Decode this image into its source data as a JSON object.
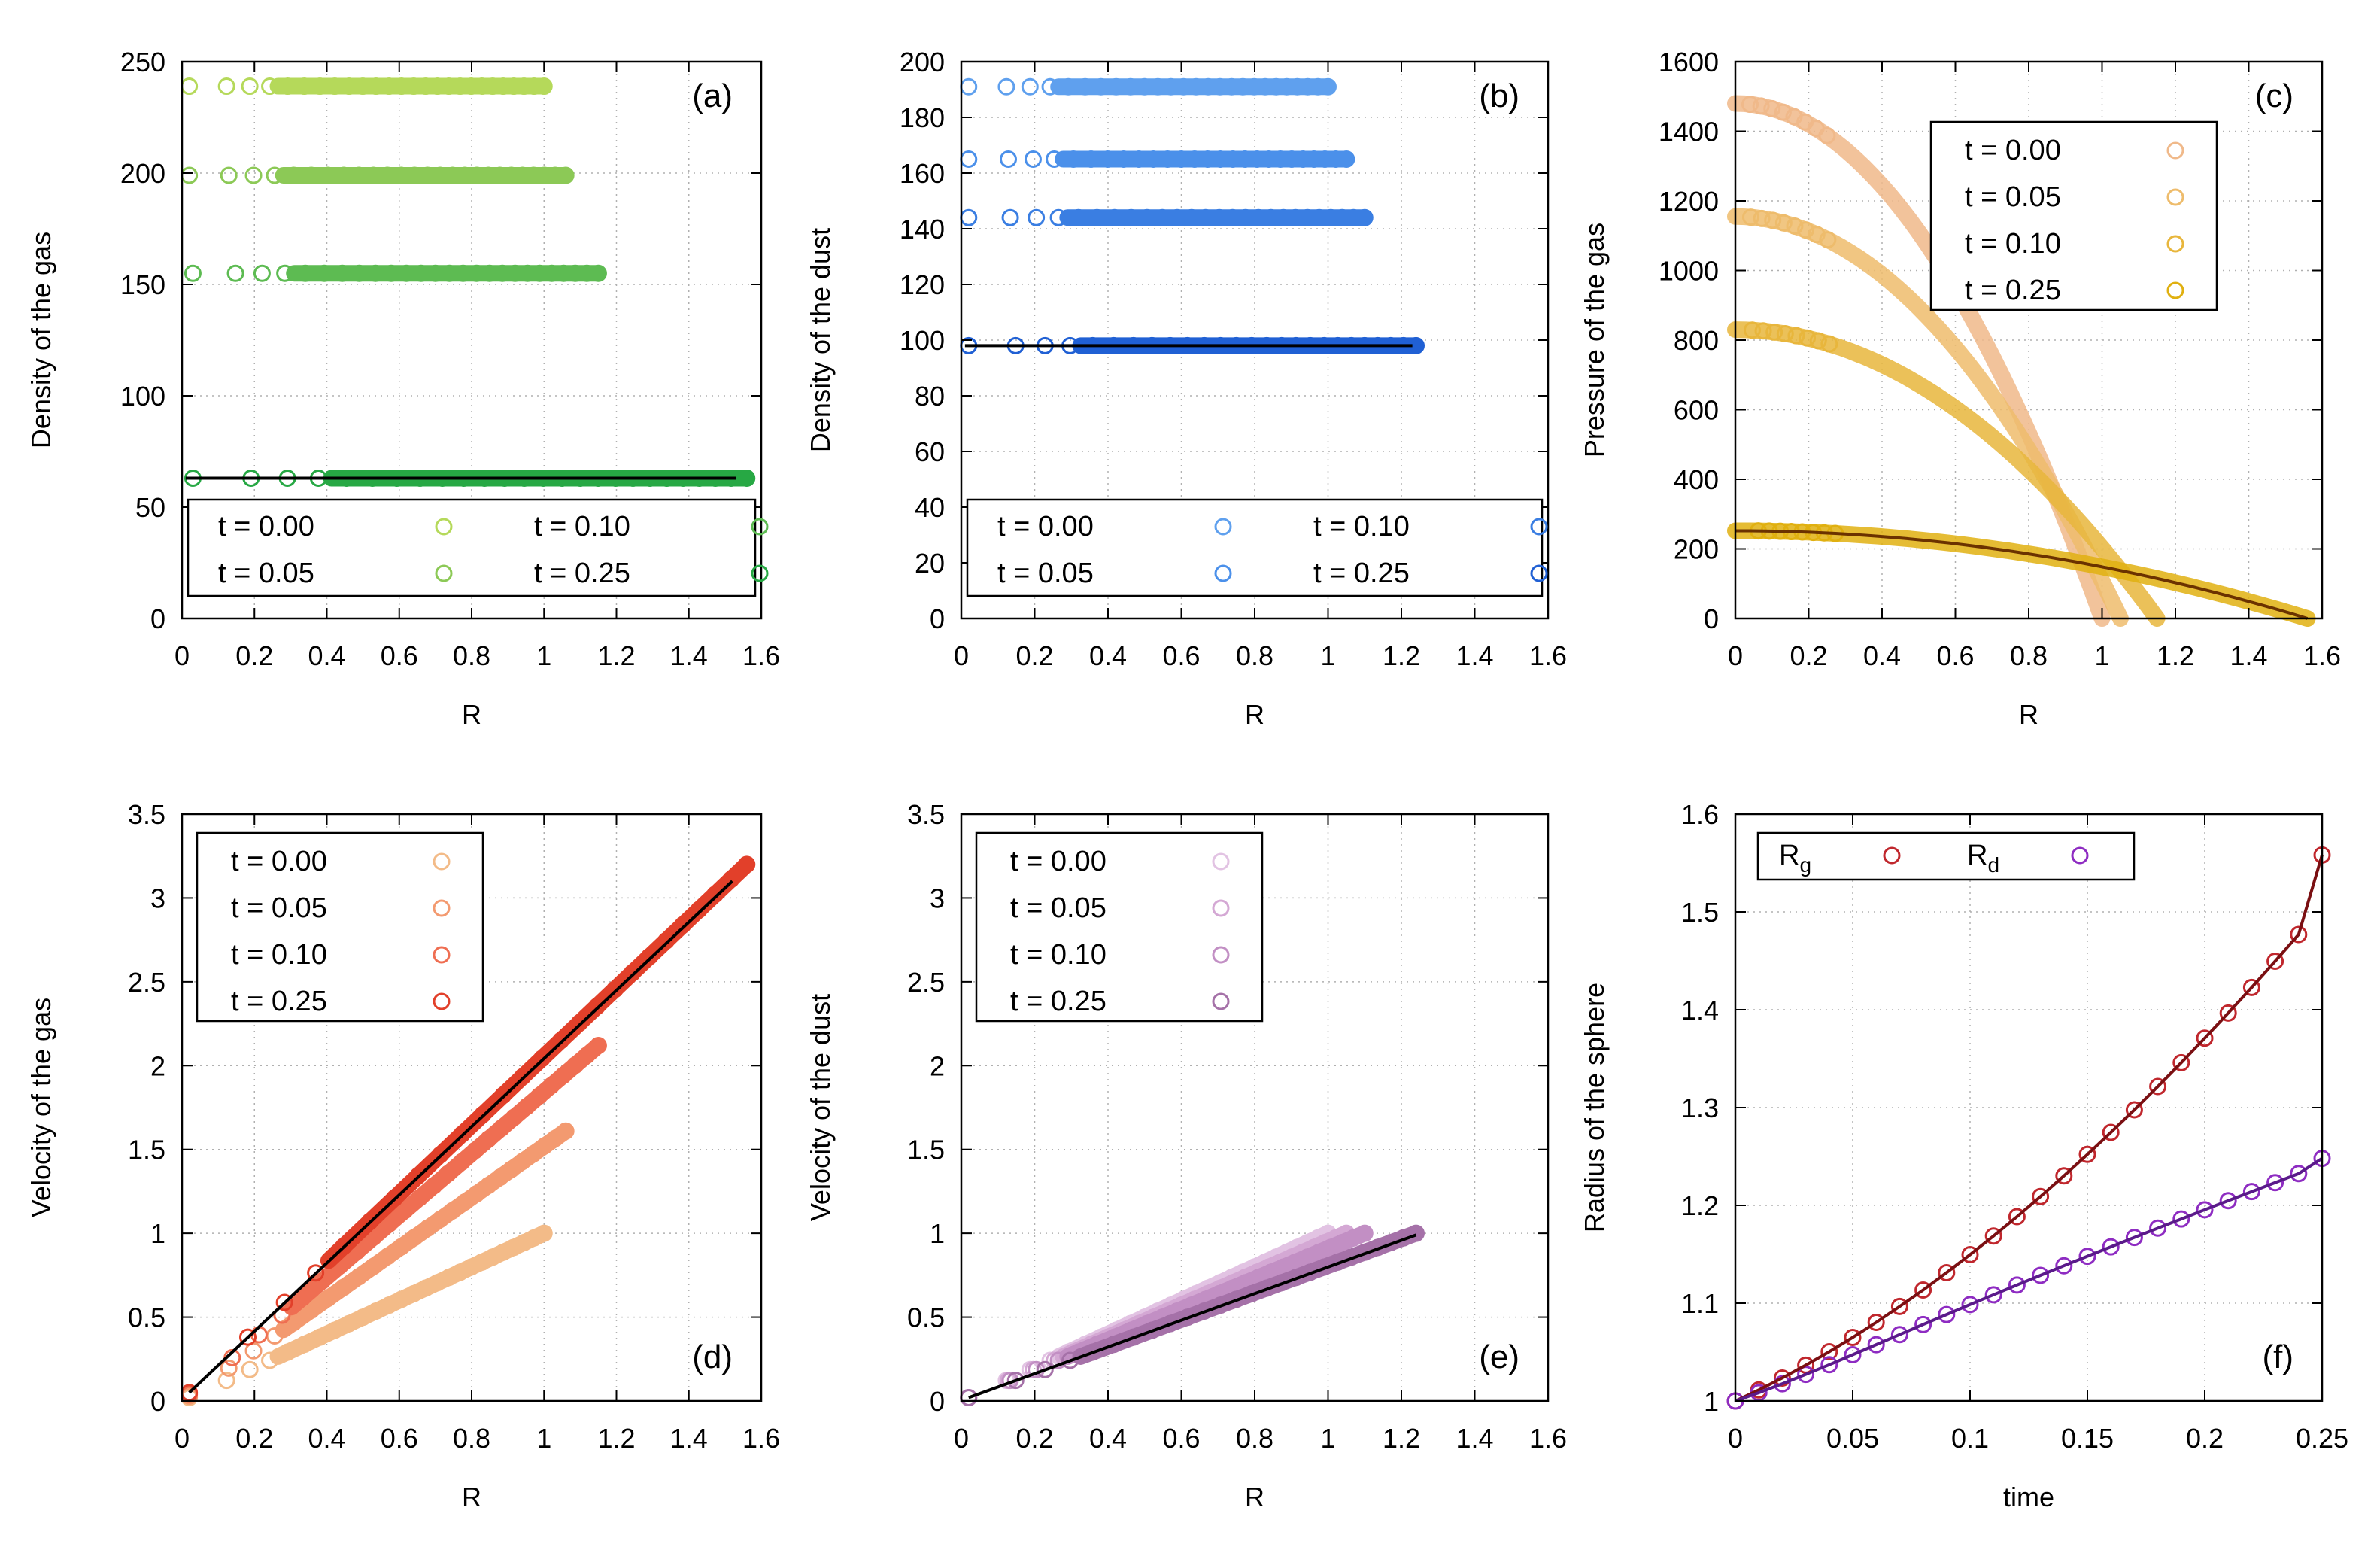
{
  "chart_data": [
    {
      "id": "a",
      "type": "scatter",
      "panel_label": "(a)",
      "xlabel": "R",
      "ylabel": "Density of the gas",
      "xlim": [
        0,
        1.6
      ],
      "ylim": [
        0,
        250
      ],
      "xticks": [
        0,
        0.2,
        0.4,
        0.6,
        0.8,
        1,
        1.2,
        1.4,
        1.6
      ],
      "xtick_labels": [
        "0",
        "0.2",
        "0.4",
        "0.6",
        "0.8",
        "1",
        "1.2",
        "1.4",
        "1.6"
      ],
      "yticks": [
        0,
        50,
        100,
        150,
        200,
        250
      ],
      "ytick_labels": [
        "0",
        "50",
        "100",
        "150",
        "200",
        "250"
      ],
      "legend": {
        "layout": "two-column",
        "placement": "bottom"
      },
      "series": [
        {
          "name": "t = 0.00",
          "color": "#b5d95a",
          "kind": "profile",
          "points": [
            [
              0.02,
              239
            ],
            [
              1.0,
              239
            ]
          ]
        },
        {
          "name": "t = 0.05",
          "color": "#8cc956",
          "kind": "profile",
          "points": [
            [
              0.02,
              199
            ],
            [
              1.06,
              199
            ]
          ]
        },
        {
          "name": "t = 0.10",
          "color": "#5dbb52",
          "kind": "profile",
          "points": [
            [
              0.03,
              155
            ],
            [
              1.15,
              155
            ]
          ]
        },
        {
          "name": "t = 0.25",
          "color": "#27a844",
          "kind": "profile",
          "points": [
            [
              0.03,
              63
            ],
            [
              1.56,
              63
            ]
          ]
        }
      ],
      "reference_lines": [
        {
          "color": "#000000",
          "points": [
            [
              0.01,
              63
            ],
            [
              1.53,
              63
            ]
          ]
        }
      ]
    },
    {
      "id": "b",
      "type": "scatter",
      "panel_label": "(b)",
      "xlabel": "R",
      "ylabel": "Density of the dust",
      "xlim": [
        0,
        1.6
      ],
      "ylim": [
        0,
        200
      ],
      "xticks": [
        0,
        0.2,
        0.4,
        0.6,
        0.8,
        1,
        1.2,
        1.4,
        1.6
      ],
      "xtick_labels": [
        "0",
        "0.2",
        "0.4",
        "0.6",
        "0.8",
        "1",
        "1.2",
        "1.4",
        "1.6"
      ],
      "yticks": [
        0,
        20,
        40,
        60,
        80,
        100,
        120,
        140,
        160,
        180,
        200
      ],
      "ytick_labels": [
        "0",
        "20",
        "40",
        "60",
        "80",
        "100",
        "120",
        "140",
        "160",
        "180",
        "200"
      ],
      "legend": {
        "layout": "two-column",
        "placement": "bottom"
      },
      "series": [
        {
          "name": "t = 0.00",
          "color": "#5fa0ee",
          "kind": "profile",
          "points": [
            [
              0.02,
              191
            ],
            [
              1.0,
              191
            ]
          ]
        },
        {
          "name": "t = 0.05",
          "color": "#4b90ea",
          "kind": "profile",
          "points": [
            [
              0.02,
              165
            ],
            [
              1.05,
              165
            ]
          ]
        },
        {
          "name": "t = 0.10",
          "color": "#3a7ee2",
          "kind": "profile",
          "points": [
            [
              0.02,
              144
            ],
            [
              1.1,
              144
            ]
          ]
        },
        {
          "name": "t = 0.25",
          "color": "#2060d4",
          "kind": "profile",
          "points": [
            [
              0.02,
              98
            ],
            [
              1.24,
              98
            ]
          ]
        }
      ],
      "reference_lines": [
        {
          "color": "#000000",
          "points": [
            [
              0.01,
              98
            ],
            [
              1.23,
              98
            ]
          ]
        }
      ]
    },
    {
      "id": "c",
      "type": "scatter",
      "panel_label": "(c)",
      "xlabel": "R",
      "ylabel": "Pressure of the gas",
      "xlim": [
        0,
        1.6
      ],
      "ylim": [
        0,
        1600
      ],
      "xticks": [
        0,
        0.2,
        0.4,
        0.6,
        0.8,
        1,
        1.2,
        1.4,
        1.6
      ],
      "xtick_labels": [
        "0",
        "0.2",
        "0.4",
        "0.6",
        "0.8",
        "1",
        "1.2",
        "1.4",
        "1.6"
      ],
      "yticks": [
        0,
        200,
        400,
        600,
        800,
        1000,
        1200,
        1400,
        1600
      ],
      "ytick_labels": [
        "0",
        "200",
        "400",
        "600",
        "800",
        "1000",
        "1200",
        "1400",
        "1600"
      ],
      "legend": {
        "layout": "one-column",
        "placement": "top-right"
      },
      "series": [
        {
          "name": "t = 0.00",
          "color": "#f0b98a",
          "kind": "parabola",
          "p0": 1480,
          "r_end": 1.0
        },
        {
          "name": "t = 0.05",
          "color": "#eebc6c",
          "kind": "parabola",
          "p0": 1155,
          "r_end": 1.05
        },
        {
          "name": "t = 0.10",
          "color": "#e8b63c",
          "kind": "parabola",
          "p0": 830,
          "r_end": 1.15
        },
        {
          "name": "t = 0.25",
          "color": "#e0b010",
          "kind": "parabola",
          "p0": 252,
          "r_end": 1.56
        }
      ],
      "reference_lines": [
        {
          "color": "#6b3200",
          "kind": "parabola",
          "p0": 252,
          "r_end": 1.56
        }
      ]
    },
    {
      "id": "d",
      "type": "scatter",
      "panel_label": "(d)",
      "xlabel": "R",
      "ylabel": "Velocity of the gas",
      "xlim": [
        0,
        1.6
      ],
      "ylim": [
        0,
        3.5
      ],
      "xticks": [
        0,
        0.2,
        0.4,
        0.6,
        0.8,
        1,
        1.2,
        1.4,
        1.6
      ],
      "xtick_labels": [
        "0",
        "0.2",
        "0.4",
        "0.6",
        "0.8",
        "1",
        "1.2",
        "1.4",
        "1.6"
      ],
      "yticks": [
        0,
        0.5,
        1,
        1.5,
        2,
        2.5,
        3,
        3.5
      ],
      "ytick_labels": [
        "0",
        "0.5",
        "1",
        "1.5",
        "2",
        "2.5",
        "3",
        "3.5"
      ],
      "legend": {
        "layout": "one-column",
        "placement": "top-left"
      },
      "series": [
        {
          "name": "t = 0.00",
          "color": "#f3bb88",
          "kind": "profile",
          "points": [
            [
              0.02,
              0.02
            ],
            [
              1.0,
              1.0
            ]
          ]
        },
        {
          "name": "t = 0.05",
          "color": "#f39a70",
          "kind": "profile",
          "points": [
            [
              0.02,
              0.03
            ],
            [
              1.06,
              1.61
            ]
          ]
        },
        {
          "name": "t = 0.10",
          "color": "#ef6e52",
          "kind": "profile",
          "points": [
            [
              0.02,
              0.04
            ],
            [
              1.15,
              2.12
            ]
          ]
        },
        {
          "name": "t = 0.25",
          "color": "#e2402a",
          "kind": "profile",
          "points": [
            [
              0.02,
              0.05
            ],
            [
              1.56,
              3.2
            ]
          ]
        }
      ],
      "reference_lines": [
        {
          "color": "#000000",
          "points": [
            [
              0.02,
              0.05
            ],
            [
              1.52,
              3.1
            ]
          ]
        }
      ]
    },
    {
      "id": "e",
      "type": "scatter",
      "panel_label": "(e)",
      "xlabel": "R",
      "ylabel": "Velocity of the dust",
      "xlim": [
        0,
        1.6
      ],
      "ylim": [
        0,
        3.5
      ],
      "xticks": [
        0,
        0.2,
        0.4,
        0.6,
        0.8,
        1,
        1.2,
        1.4,
        1.6
      ],
      "xtick_labels": [
        "0",
        "0.2",
        "0.4",
        "0.6",
        "0.8",
        "1",
        "1.2",
        "1.4",
        "1.6"
      ],
      "yticks": [
        0,
        0.5,
        1,
        1.5,
        2,
        2.5,
        3,
        3.5
      ],
      "ytick_labels": [
        "0",
        "0.5",
        "1",
        "1.5",
        "2",
        "2.5",
        "3",
        "3.5"
      ],
      "legend": {
        "layout": "one-column",
        "placement": "top-left"
      },
      "series": [
        {
          "name": "t = 0.00",
          "color": "#e2c3e3",
          "kind": "profile",
          "points": [
            [
              0.02,
              0.02
            ],
            [
              1.0,
              1.0
            ]
          ]
        },
        {
          "name": "t = 0.05",
          "color": "#d4a8d4",
          "kind": "profile",
          "points": [
            [
              0.02,
              0.02
            ],
            [
              1.05,
              1.0
            ]
          ]
        },
        {
          "name": "t = 0.10",
          "color": "#c28fc4",
          "kind": "profile",
          "points": [
            [
              0.02,
              0.02
            ],
            [
              1.1,
              1.0
            ]
          ]
        },
        {
          "name": "t = 0.25",
          "color": "#a571a8",
          "kind": "profile",
          "points": [
            [
              0.02,
              0.02
            ],
            [
              1.24,
              1.0
            ]
          ]
        }
      ],
      "reference_lines": [
        {
          "color": "#000000",
          "points": [
            [
              0.02,
              0.02
            ],
            [
              1.24,
              0.99
            ]
          ]
        }
      ]
    },
    {
      "id": "f",
      "type": "scatter",
      "panel_label": "(f)",
      "xlabel": "time",
      "ylabel": "Radius of the sphere",
      "xlim": [
        0,
        0.25
      ],
      "ylim": [
        1,
        1.6
      ],
      "xticks": [
        0,
        0.05,
        0.1,
        0.15,
        0.2,
        0.25
      ],
      "xtick_labels": [
        "0",
        "0.05",
        "0.1",
        "0.15",
        "0.2",
        "0.25"
      ],
      "yticks": [
        1,
        1.1,
        1.2,
        1.3,
        1.4,
        1.5,
        1.6
      ],
      "ytick_labels": [
        "1",
        "1.1",
        "1.2",
        "1.3",
        "1.4",
        "1.5",
        "1.6"
      ],
      "legend": {
        "layout": "two-column-inline",
        "placement": "top-left"
      },
      "series": [
        {
          "name": "R",
          "sub": "g",
          "color": "#c0272d",
          "kind": "markers",
          "x": [
            0,
            0.01,
            0.02,
            0.03,
            0.04,
            0.05,
            0.06,
            0.07,
            0.08,
            0.09,
            0.1,
            0.11,
            0.12,
            0.13,
            0.14,
            0.15,
            0.16,
            0.17,
            0.18,
            0.19,
            0.2,
            0.21,
            0.22,
            0.23,
            0.24,
            0.25
          ],
          "y": [
            1.0,
            1.0113,
            1.0235,
            1.0366,
            1.0504,
            1.065,
            1.0804,
            1.0966,
            1.1135,
            1.1312,
            1.1496,
            1.1687,
            1.1885,
            1.209,
            1.2302,
            1.2521,
            1.2746,
            1.2977,
            1.3215,
            1.3459,
            1.371,
            1.3966,
            1.4228,
            1.4496,
            1.4769,
            1.5582
          ]
        },
        {
          "name": "R",
          "sub": "d",
          "color": "#8e2cc2",
          "kind": "markers",
          "x": [
            0,
            0.01,
            0.02,
            0.03,
            0.04,
            0.05,
            0.06,
            0.07,
            0.08,
            0.09,
            0.1,
            0.11,
            0.12,
            0.13,
            0.14,
            0.15,
            0.16,
            0.17,
            0.18,
            0.19,
            0.2,
            0.21,
            0.22,
            0.23,
            0.24,
            0.25
          ],
          "y": [
            1.0,
            1.0085,
            1.0176,
            1.0272,
            1.0371,
            1.0473,
            1.0576,
            1.0679,
            1.0782,
            1.0884,
            1.0986,
            1.1086,
            1.1186,
            1.1285,
            1.1383,
            1.148,
            1.1576,
            1.1672,
            1.1767,
            1.1861,
            1.1955,
            1.2048,
            1.2141,
            1.2233,
            1.2325,
            1.248
          ]
        }
      ],
      "reference_lines": [
        {
          "color": "#7a0f12",
          "kind": "curve-of-series",
          "series_index": 0
        },
        {
          "color": "#5a1a8a",
          "kind": "curve-of-series",
          "series_index": 1
        }
      ]
    }
  ]
}
